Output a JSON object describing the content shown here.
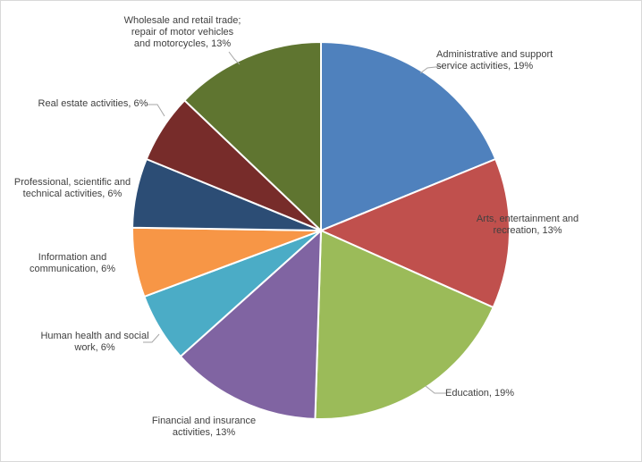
{
  "chart_data": {
    "type": "pie",
    "legend": "none",
    "slices": [
      {
        "name": "Administrative and support service activities",
        "value": 19,
        "color": "#4F81BD",
        "label_lines": [
          "Administrative and support",
          "service activities, 19%"
        ]
      },
      {
        "name": "Arts, entertainment and recreation",
        "value": 13,
        "color": "#C0504D",
        "label_lines": [
          "Arts, entertainment and",
          "recreation, 13%"
        ]
      },
      {
        "name": "Education",
        "value": 19,
        "color": "#9BBB59",
        "label_lines": [
          "Education, 19%"
        ]
      },
      {
        "name": "Financial and insurance activities",
        "value": 13,
        "color": "#8064A2",
        "label_lines": [
          "Financial and insurance",
          "activities, 13%"
        ]
      },
      {
        "name": "Human health and social work",
        "value": 6,
        "color": "#4BACC6",
        "label_lines": [
          "Human health and social",
          "work, 6%"
        ]
      },
      {
        "name": "Information and communication",
        "value": 6,
        "color": "#F79646",
        "label_lines": [
          "Information and",
          "communication, 6%"
        ]
      },
      {
        "name": "Professional, scientific and technical activities",
        "value": 6,
        "color": "#2C4D75",
        "label_lines": [
          "Professional, scientific and",
          "technical activities, 6%"
        ]
      },
      {
        "name": "Real estate activities",
        "value": 6,
        "color": "#772C2A",
        "label_lines": [
          "Real estate activities, 6%"
        ]
      },
      {
        "name": "Wholesale and retail trade; repair of motor vehicles and motorcycles",
        "value": 13,
        "color": "#5F7530",
        "label_lines": [
          "Wholesale and retail trade;",
          "repair of motor vehicles",
          "and motorcycles, 13%"
        ]
      }
    ]
  }
}
